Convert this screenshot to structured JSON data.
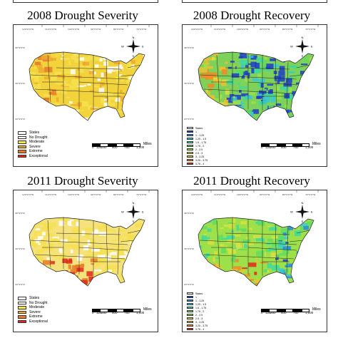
{
  "panels": [
    {
      "id": "p2008s",
      "title": "2008 Drought Severity",
      "map_fill": "#f2d33b",
      "legend": [
        {
          "label": "States",
          "color": "#ffffff"
        },
        {
          "label": "No Drought",
          "color": "#ffffff"
        },
        {
          "label": "Moderate",
          "color": "#f5e050"
        },
        {
          "label": "Severe",
          "color": "#f0a830"
        },
        {
          "label": "Extreme",
          "color": "#e87a28"
        },
        {
          "label": "Exceptional",
          "color": "#e02818"
        }
      ]
    },
    {
      "id": "p2008r",
      "title": "2008 Drought Recovery",
      "map_fill": "#7ed25a",
      "legend": [
        {
          "label": "States",
          "color": "#ffffff"
        },
        {
          "label": "1",
          "color": "#1c3cc8"
        },
        {
          "label": "1 - 1.25",
          "color": "#2a8ae0"
        },
        {
          "label": "1.25 - 1.5",
          "color": "#38c8d8"
        },
        {
          "label": "1.5 - 1.75",
          "color": "#40d8a0"
        },
        {
          "label": "1.75 - 2",
          "color": "#60dc60"
        },
        {
          "label": "2 - 2.5",
          "color": "#9ee04a"
        },
        {
          "label": "2.5 - 3",
          "color": "#d8e040"
        },
        {
          "label": "3 - 3.25",
          "color": "#f0c030"
        },
        {
          "label": "3.25 - 3.75",
          "color": "#f08a28"
        },
        {
          "label": "3.75 - 4",
          "color": "#e02818"
        }
      ]
    },
    {
      "id": "p2011s",
      "title": "2011 Drought Severity",
      "map_fill": "#f6e27a",
      "legend": [
        {
          "label": "States",
          "color": "#ffffff"
        },
        {
          "label": "No Drought",
          "color": "#ffffff"
        },
        {
          "label": "Moderate",
          "color": "#f5e050"
        },
        {
          "label": "Severe",
          "color": "#f0a830"
        },
        {
          "label": "Extreme",
          "color": "#e87a28"
        },
        {
          "label": "Exceptional",
          "color": "#e02818"
        }
      ]
    },
    {
      "id": "p2011r",
      "title": "2011 Drought Recovery",
      "map_fill": "#9ee04a",
      "legend": [
        {
          "label": "States",
          "color": "#ffffff"
        },
        {
          "label": "1",
          "color": "#1c3cc8"
        },
        {
          "label": "1 - 1.25",
          "color": "#2a8ae0"
        },
        {
          "label": "1.25 - 1.5",
          "color": "#38c8d8"
        },
        {
          "label": "1.5 - 1.75",
          "color": "#40d8a0"
        },
        {
          "label": "1.75 - 2",
          "color": "#60dc60"
        },
        {
          "label": "2 - 2.5",
          "color": "#9ee04a"
        },
        {
          "label": "2.5 - 3",
          "color": "#d8e040"
        },
        {
          "label": "3 - 3.25",
          "color": "#f0c030"
        },
        {
          "label": "3.25 - 3.75",
          "color": "#f08a28"
        },
        {
          "label": "3.75 - 4",
          "color": "#e02818"
        }
      ]
    }
  ],
  "scale": {
    "unit": "Miles",
    "ticks": [
      "0",
      "125",
      "250",
      "500",
      "750",
      "1,000"
    ]
  },
  "compass": {
    "n": "N",
    "s": "S",
    "e": "E",
    "w": "W"
  },
  "lon_ticks": [
    "120°0'0\"W",
    "110°0'0\"W",
    "100°0'0\"W",
    "90°0'0\"W",
    "80°0'0\"W",
    "70°0'0\"W"
  ],
  "lat_ticks": [
    "40°0'0\"N",
    "30°0'0\"N",
    "20°0'0\"N"
  ]
}
